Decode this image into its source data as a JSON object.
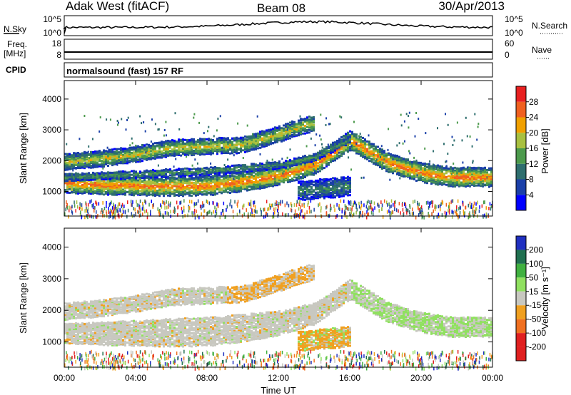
{
  "header": {
    "title": "Adak West (fitACF)",
    "beam": "Beam 08",
    "date": "30/Apr/2013"
  },
  "aux_panels": {
    "nsky_label": "N.Sky",
    "nsky_ticks": [
      "10^5",
      "10^0"
    ],
    "nsearch_label": "N.Search",
    "nsearch_ticks": [
      "10^5",
      "10^0"
    ],
    "freq_label": "Freq.",
    "freq_unit": "[MHz]",
    "freq_ticks": [
      "18",
      "8"
    ],
    "nave_label": "Nave",
    "nave_ticks": [
      "60",
      "0"
    ],
    "cpid_label": "CPID",
    "cpid_text": "normalsound (fast) 157 RF"
  },
  "chart_data": [
    {
      "type": "heatmap",
      "panel": "power",
      "ylabel": "Slant Range [km]",
      "xlabel": "",
      "ylim": [
        200,
        4600
      ],
      "yticks": [
        "1000",
        "2000",
        "3000",
        "4000"
      ],
      "colorbar_label": "Power [dB]",
      "colorbar_ticks": [
        "4",
        "8",
        "12",
        "16",
        "20",
        "24",
        "28"
      ],
      "colorbar_range": [
        0,
        32
      ],
      "colors": [
        "#0000ff",
        "#1a3fa8",
        "#2e6e6e",
        "#4c9a4c",
        "#a8c040",
        "#f0a000",
        "#f06020",
        "#e82020"
      ],
      "bands": [
        {
          "label": "lower echo band",
          "points": [
            [
              0,
              1300
            ],
            [
              2,
              1250
            ],
            [
              4,
              1220
            ],
            [
              6,
              1200
            ],
            [
              8,
              1220
            ],
            [
              10,
              1350
            ],
            [
              12,
              1550
            ],
            [
              14,
              1900
            ],
            [
              15,
              2300
            ],
            [
              16,
              2700
            ],
            [
              17,
              2350
            ],
            [
              18,
              2000
            ],
            [
              19,
              1800
            ],
            [
              20,
              1650
            ],
            [
              21,
              1550
            ],
            [
              22,
              1500
            ],
            [
              24,
              1500
            ]
          ],
          "width": 300,
          "power": 26
        },
        {
          "label": "upper echo band",
          "points": [
            [
              0,
              2000
            ],
            [
              2,
              2100
            ],
            [
              4,
              2250
            ],
            [
              6,
              2450
            ],
            [
              8,
              2500
            ],
            [
              10,
              2550
            ],
            [
              12,
              2900
            ],
            [
              13,
              3100
            ],
            [
              14,
              3250
            ]
          ],
          "width": 250,
          "power": 20
        },
        {
          "label": "mid echo band",
          "points": [
            [
              0,
              1500
            ],
            [
              4,
              1600
            ],
            [
              8,
              1700
            ],
            [
              12,
              1900
            ],
            [
              14,
              2150
            ],
            [
              15,
              2450
            ],
            [
              16,
              2750
            ]
          ],
          "width": 120,
          "power": 14
        },
        {
          "label": "near echo patch",
          "points": [
            [
              13,
              1050
            ],
            [
              14,
              1100
            ],
            [
              15,
              1150
            ],
            [
              16,
              1200
            ]
          ],
          "width": 300,
          "power": 12
        }
      ]
    },
    {
      "type": "heatmap",
      "panel": "velocity",
      "ylabel": "Slant Range [km]",
      "xlabel": "Time UT",
      "ylim": [
        200,
        4600
      ],
      "yticks": [
        "1000",
        "2000",
        "3000",
        "4000"
      ],
      "xticks": [
        "00:00",
        "04:00",
        "08:00",
        "12:00",
        "16:00",
        "20:00",
        "00:00"
      ],
      "xlim": [
        0,
        24
      ],
      "colorbar_label": "Velocity [m s⁻¹]",
      "colorbar_ticks": [
        "200",
        "100",
        "50",
        "15",
        "-15",
        "-50",
        "-100",
        "-200"
      ],
      "colors": [
        "#2030c0",
        "#207050",
        "#40b040",
        "#90e060",
        "#c8c8c0",
        "#f0a020",
        "#f07020",
        "#e02020"
      ]
    }
  ]
}
